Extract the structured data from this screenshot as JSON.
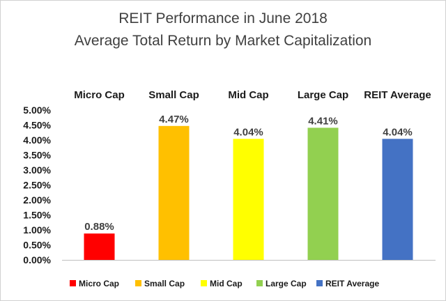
{
  "chart_data": {
    "type": "bar",
    "title": "REIT Performance in June 2018",
    "subtitle": "Average Total Return by Market Capitalization",
    "categories": [
      "Micro Cap",
      "Small Cap",
      "Mid Cap",
      "Large Cap",
      "REIT Average"
    ],
    "values": [
      0.88,
      4.47,
      4.04,
      4.41,
      4.04
    ],
    "data_labels": [
      "0.88%",
      "4.47%",
      "4.04%",
      "4.41%",
      "4.04%"
    ],
    "colors": [
      "#ff0000",
      "#ffc000",
      "#ffff00",
      "#92d050",
      "#4472c4"
    ],
    "ylim": [
      0,
      5
    ],
    "yticks": [
      "0.00%",
      "0.50%",
      "1.00%",
      "1.50%",
      "2.00%",
      "2.50%",
      "3.00%",
      "3.50%",
      "4.00%",
      "4.50%",
      "5.00%"
    ],
    "xlabel": "",
    "ylabel": "",
    "grid": false,
    "legend": {
      "position": "bottom",
      "entries": [
        "Micro Cap",
        "Small Cap",
        "Mid Cap",
        "Large Cap",
        "REIT Average"
      ]
    }
  }
}
